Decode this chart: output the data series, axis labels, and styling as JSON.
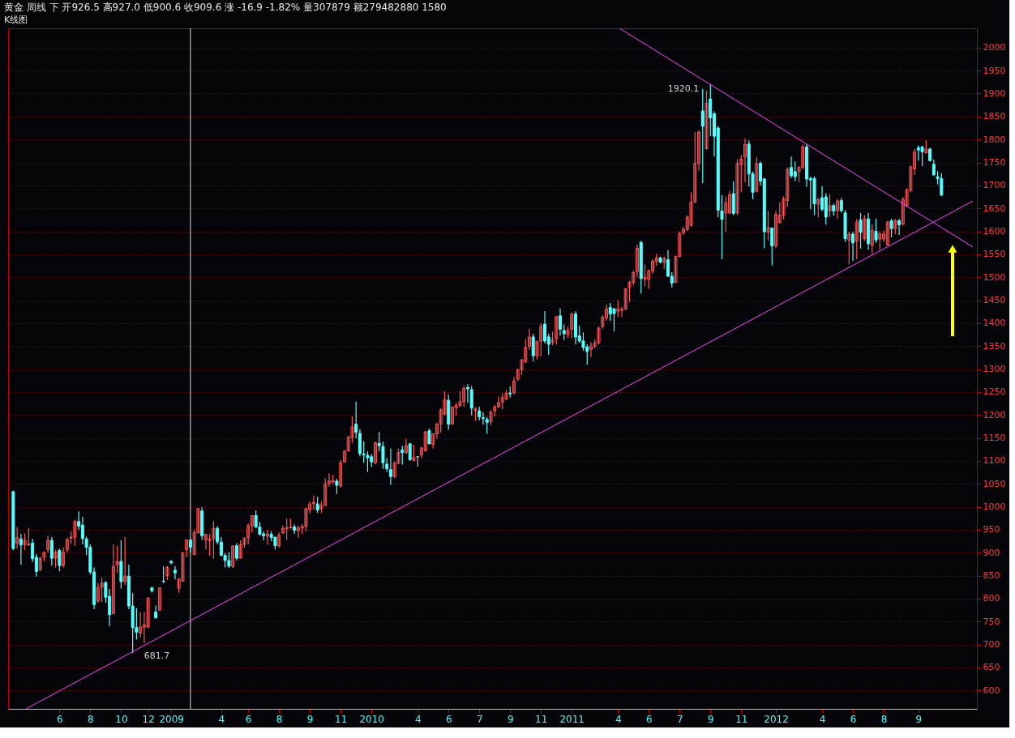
{
  "chart_data": {
    "type": "candlestick",
    "title": "黄金  周线  下  开926.5 高927.0 低900.6 收909.6 涨 -16.9 -1.82% 量307879 额279482880 1580",
    "subtitle": "K线图",
    "x": [
      "2008-03-22",
      "2008-03-29",
      "2008-04-05",
      "2008-04-12",
      "2008-04-19",
      "2008-04-26",
      "2008-05-03",
      "2008-05-10",
      "2008-05-17",
      "2008-05-24",
      "2008-05-31",
      "2008-06-07",
      "2008-06-14",
      "2008-06-21",
      "2008-06-28",
      "2008-07-05",
      "2008-07-12",
      "2008-07-19",
      "2008-07-26",
      "2008-08-02",
      "2008-08-09",
      "2008-08-16",
      "2008-08-23",
      "2008-08-30",
      "2008-09-06",
      "2008-09-13",
      "2008-09-20",
      "2008-09-27",
      "2008-10-04",
      "2008-10-11",
      "2008-10-18",
      "2008-10-25",
      "2008-11-01",
      "2008-11-08",
      "2008-11-15",
      "2008-11-22",
      "2008-11-29",
      "2008-12-06",
      "2008-12-13",
      "2008-12-20",
      "2008-12-27",
      "2009-01-03",
      "2009-01-10",
      "2009-01-17",
      "2009-01-24",
      "2009-01-31",
      "2009-02-07",
      "2009-02-14",
      "2009-02-21",
      "2009-02-28",
      "2009-03-07",
      "2009-03-14",
      "2009-03-21",
      "2009-03-28",
      "2009-04-04",
      "2009-04-11",
      "2009-04-18",
      "2009-04-25",
      "2009-05-02",
      "2009-05-09",
      "2009-05-16",
      "2009-05-23",
      "2009-05-30",
      "2009-06-06",
      "2009-06-13",
      "2009-06-20",
      "2009-06-27",
      "2009-07-04",
      "2009-07-11",
      "2009-07-18",
      "2009-07-25",
      "2009-08-01",
      "2009-08-08",
      "2009-08-15",
      "2009-08-22",
      "2009-08-29",
      "2009-09-05",
      "2009-09-12",
      "2009-09-19",
      "2009-09-26",
      "2009-10-03",
      "2009-10-10",
      "2009-10-17",
      "2009-10-24",
      "2009-10-31",
      "2009-11-07",
      "2009-11-14",
      "2009-11-21",
      "2009-11-28",
      "2009-12-05",
      "2009-12-12",
      "2009-12-19",
      "2009-12-26",
      "2010-01-02",
      "2010-01-09",
      "2010-01-16",
      "2010-01-23",
      "2010-01-30",
      "2010-02-06",
      "2010-02-13",
      "2010-02-20",
      "2010-02-27",
      "2010-03-06",
      "2010-03-13",
      "2010-03-20",
      "2010-03-27",
      "2010-04-03",
      "2010-04-10",
      "2010-04-17",
      "2010-04-24",
      "2010-05-01",
      "2010-05-08",
      "2010-05-15",
      "2010-05-22",
      "2010-05-29",
      "2010-06-05",
      "2010-06-12",
      "2010-06-19",
      "2010-06-26",
      "2010-07-03",
      "2010-07-10",
      "2010-07-17",
      "2010-07-24",
      "2010-07-31",
      "2010-08-07",
      "2010-08-14",
      "2010-08-21",
      "2010-08-28",
      "2010-09-04",
      "2010-09-11",
      "2010-09-18",
      "2010-09-25",
      "2010-10-02",
      "2010-10-09",
      "2010-10-16",
      "2010-10-23",
      "2010-10-30",
      "2010-11-06",
      "2010-11-13",
      "2010-11-20",
      "2010-11-27",
      "2010-12-04",
      "2010-12-11",
      "2010-12-18",
      "2010-12-25",
      "2011-01-01",
      "2011-01-08",
      "2011-01-15",
      "2011-01-22",
      "2011-01-29",
      "2011-02-05",
      "2011-02-12",
      "2011-02-19",
      "2011-02-26",
      "2011-03-05",
      "2011-03-12",
      "2011-03-19",
      "2011-03-26",
      "2011-04-02",
      "2011-04-09",
      "2011-04-16",
      "2011-04-23",
      "2011-04-30",
      "2011-05-07",
      "2011-05-14",
      "2011-05-21",
      "2011-05-28",
      "2011-06-04",
      "2011-06-11",
      "2011-06-18",
      "2011-06-25",
      "2011-07-02",
      "2011-07-09",
      "2011-07-16",
      "2011-07-23",
      "2011-07-30",
      "2011-08-06",
      "2011-08-13",
      "2011-08-20",
      "2011-08-27",
      "2011-09-03",
      "2011-09-10",
      "2011-09-17",
      "2011-09-24",
      "2011-10-01",
      "2011-10-08",
      "2011-10-15",
      "2011-10-22",
      "2011-10-29",
      "2011-11-05",
      "2011-11-12",
      "2011-11-19",
      "2011-11-26",
      "2011-12-03",
      "2011-12-10",
      "2011-12-17",
      "2011-12-24",
      "2011-12-31",
      "2012-01-07",
      "2012-01-14",
      "2012-01-21",
      "2012-01-28",
      "2012-02-04",
      "2012-02-11",
      "2012-02-18",
      "2012-02-25",
      "2012-03-03",
      "2012-03-10",
      "2012-03-17",
      "2012-03-24",
      "2012-03-31",
      "2012-04-07",
      "2012-04-14",
      "2012-04-21",
      "2012-04-28",
      "2012-05-05",
      "2012-05-12",
      "2012-05-19",
      "2012-05-26",
      "2012-06-02",
      "2012-06-09",
      "2012-06-16",
      "2012-06-23",
      "2012-06-30",
      "2012-07-07",
      "2012-07-14",
      "2012-07-21",
      "2012-07-28",
      "2012-08-04",
      "2012-08-11",
      "2012-08-18",
      "2012-08-25",
      "2012-09-01",
      "2012-09-08",
      "2012-09-15",
      "2012-09-22",
      "2012-09-29",
      "2012-10-06",
      "2012-10-13",
      "2012-10-20",
      "2012-10-27",
      "2012-11-03"
    ],
    "ohlc": [
      [
        1033,
        1035,
        906,
        909
      ],
      [
        921,
        956,
        909,
        933
      ],
      [
        930,
        941,
        874,
        917
      ],
      [
        918,
        942,
        906,
        927
      ],
      [
        917,
        954,
        915,
        919
      ],
      [
        921,
        930,
        880,
        887
      ],
      [
        890,
        897,
        848,
        859
      ],
      [
        862,
        891,
        862,
        888
      ],
      [
        890,
        903,
        882,
        900
      ],
      [
        907,
        937,
        900,
        927
      ],
      [
        927,
        934,
        872,
        888
      ],
      [
        888,
        906,
        868,
        901
      ],
      [
        905,
        909,
        860,
        872
      ],
      [
        872,
        911,
        868,
        901
      ],
      [
        907,
        933,
        901,
        928
      ],
      [
        932,
        947,
        919,
        934
      ],
      [
        934,
        971,
        915,
        968
      ],
      [
        968,
        990,
        950,
        958
      ],
      [
        960,
        978,
        918,
        931
      ],
      [
        930,
        935,
        895,
        912
      ],
      [
        912,
        918,
        853,
        858
      ],
      [
        858,
        868,
        777,
        787
      ],
      [
        795,
        834,
        791,
        824
      ],
      [
        825,
        846,
        793,
        834
      ],
      [
        835,
        838,
        791,
        803
      ],
      [
        805,
        821,
        740,
        765
      ],
      [
        767,
        918,
        767,
        870
      ],
      [
        874,
        915,
        856,
        881
      ],
      [
        881,
        927,
        822,
        837
      ],
      [
        837,
        934,
        830,
        849
      ],
      [
        849,
        874,
        777,
        784
      ],
      [
        784,
        812,
        681.7,
        737
      ],
      [
        737,
        779,
        711,
        727
      ],
      [
        725,
        771,
        715,
        738
      ],
      [
        738,
        771,
        703,
        743
      ],
      [
        738,
        803,
        735,
        801
      ],
      [
        824,
        825,
        813,
        817
      ],
      [
        771,
        785,
        758,
        758
      ],
      [
        775,
        824,
        773,
        824
      ],
      [
        838,
        870,
        834,
        837
      ],
      [
        850,
        871,
        841,
        868
      ],
      [
        881,
        884,
        875,
        878
      ],
      [
        862,
        871,
        842,
        856
      ],
      [
        823,
        843,
        813,
        843
      ],
      [
        838,
        901,
        837,
        900
      ],
      [
        906,
        928,
        890,
        928
      ],
      [
        928,
        928,
        901,
        912
      ],
      [
        896,
        950,
        896,
        944
      ],
      [
        943,
        996,
        943,
        996
      ],
      [
        991,
        999,
        928,
        937
      ],
      [
        928,
        940,
        907,
        940
      ],
      [
        926,
        941,
        893,
        930
      ],
      [
        931,
        969,
        887,
        953
      ],
      [
        953,
        958,
        918,
        924
      ],
      [
        923,
        934,
        894,
        894
      ],
      [
        894,
        899,
        868,
        883
      ],
      [
        883,
        901,
        867,
        871
      ],
      [
        870,
        916,
        867,
        915
      ],
      [
        915,
        921,
        883,
        888
      ],
      [
        888,
        927,
        888,
        918
      ],
      [
        918,
        933,
        911,
        932
      ],
      [
        933,
        964,
        918,
        959
      ],
      [
        959,
        981,
        944,
        981
      ],
      [
        981,
        992,
        954,
        956
      ],
      [
        956,
        967,
        938,
        940
      ],
      [
        941,
        946,
        927,
        937
      ],
      [
        936,
        950,
        917,
        941
      ],
      [
        940,
        947,
        925,
        933
      ],
      [
        934,
        934,
        907,
        915
      ],
      [
        915,
        944,
        911,
        938
      ],
      [
        943,
        959,
        941,
        953
      ],
      [
        953,
        974,
        928,
        954
      ],
      [
        954,
        974,
        953,
        956
      ],
      [
        956,
        962,
        941,
        949
      ],
      [
        948,
        959,
        933,
        954
      ],
      [
        954,
        962,
        941,
        957
      ],
      [
        957,
        997,
        946,
        996
      ],
      [
        994,
        1012,
        986,
        1006
      ],
      [
        1007,
        1025,
        994,
        1010
      ],
      [
        1006,
        1022,
        987,
        993
      ],
      [
        996,
        1012,
        987,
        1003
      ],
      [
        1003,
        1062,
        1003,
        1050
      ],
      [
        1051,
        1073,
        1044,
        1056
      ],
      [
        1054,
        1070,
        1050,
        1057
      ],
      [
        1056,
        1061,
        1028,
        1047
      ],
      [
        1045,
        1102,
        1042,
        1096
      ],
      [
        1098,
        1124,
        1096,
        1121
      ],
      [
        1122,
        1154,
        1120,
        1152
      ],
      [
        1151,
        1197,
        1139,
        1174
      ],
      [
        1180,
        1229,
        1149,
        1162
      ],
      [
        1160,
        1169,
        1110,
        1116
      ],
      [
        1115,
        1143,
        1096,
        1113
      ],
      [
        1112,
        1121,
        1076,
        1107
      ],
      [
        1109,
        1115,
        1087,
        1098
      ],
      [
        1096,
        1142,
        1093,
        1139
      ],
      [
        1138,
        1163,
        1121,
        1133
      ],
      [
        1131,
        1142,
        1083,
        1096
      ],
      [
        1093,
        1106,
        1076,
        1083
      ],
      [
        1081,
        1127,
        1048,
        1066
      ],
      [
        1066,
        1099,
        1063,
        1095
      ],
      [
        1095,
        1127,
        1093,
        1118
      ],
      [
        1124,
        1133,
        1092,
        1118
      ],
      [
        1118,
        1148,
        1115,
        1133
      ],
      [
        1137,
        1139,
        1100,
        1103
      ],
      [
        1101,
        1135,
        1101,
        1107
      ],
      [
        1109,
        1109,
        1087,
        1109
      ],
      [
        1113,
        1131,
        1106,
        1128
      ],
      [
        1122,
        1165,
        1120,
        1163
      ],
      [
        1166,
        1171,
        1137,
        1137
      ],
      [
        1136,
        1160,
        1127,
        1159
      ],
      [
        1159,
        1183,
        1148,
        1180
      ],
      [
        1180,
        1215,
        1162,
        1211
      ],
      [
        1202,
        1252,
        1199,
        1233
      ],
      [
        1232,
        1244,
        1168,
        1180
      ],
      [
        1180,
        1219,
        1179,
        1217
      ],
      [
        1215,
        1227,
        1199,
        1221
      ],
      [
        1221,
        1252,
        1218,
        1229
      ],
      [
        1229,
        1263,
        1218,
        1258
      ],
      [
        1260,
        1267,
        1227,
        1257
      ],
      [
        1255,
        1263,
        1199,
        1215
      ],
      [
        1210,
        1217,
        1186,
        1213
      ],
      [
        1209,
        1218,
        1188,
        1196
      ],
      [
        1194,
        1206,
        1179,
        1192
      ],
      [
        1190,
        1196,
        1159,
        1184
      ],
      [
        1186,
        1210,
        1177,
        1206
      ],
      [
        1209,
        1221,
        1197,
        1218
      ],
      [
        1218,
        1240,
        1215,
        1227
      ],
      [
        1228,
        1247,
        1212,
        1238
      ],
      [
        1235,
        1254,
        1233,
        1247
      ],
      [
        1248,
        1262,
        1238,
        1246
      ],
      [
        1249,
        1283,
        1244,
        1274
      ],
      [
        1278,
        1301,
        1274,
        1298
      ],
      [
        1299,
        1322,
        1287,
        1320
      ],
      [
        1316,
        1365,
        1313,
        1347
      ],
      [
        1349,
        1388,
        1342,
        1370
      ],
      [
        1370,
        1377,
        1317,
        1329
      ],
      [
        1329,
        1362,
        1321,
        1360
      ],
      [
        1361,
        1400,
        1327,
        1393
      ],
      [
        1398,
        1426,
        1356,
        1361
      ],
      [
        1370,
        1377,
        1331,
        1354
      ],
      [
        1358,
        1382,
        1352,
        1364
      ],
      [
        1366,
        1416,
        1354,
        1414
      ],
      [
        1416,
        1432,
        1373,
        1387
      ],
      [
        1384,
        1397,
        1363,
        1377
      ],
      [
        1375,
        1393,
        1368,
        1384
      ],
      [
        1386,
        1423,
        1368,
        1420
      ],
      [
        1420,
        1426,
        1354,
        1370
      ],
      [
        1372,
        1394,
        1357,
        1361
      ],
      [
        1361,
        1380,
        1340,
        1347
      ],
      [
        1348,
        1354,
        1310,
        1338
      ],
      [
        1343,
        1359,
        1326,
        1350
      ],
      [
        1350,
        1365,
        1345,
        1357
      ],
      [
        1357,
        1393,
        1354,
        1389
      ],
      [
        1393,
        1418,
        1388,
        1413
      ],
      [
        1411,
        1441,
        1406,
        1431
      ],
      [
        1434,
        1444,
        1405,
        1420
      ],
      [
        1431,
        1433,
        1382,
        1421
      ],
      [
        1426,
        1450,
        1413,
        1431
      ],
      [
        1428,
        1436,
        1413,
        1430
      ],
      [
        1431,
        1476,
        1429,
        1475
      ],
      [
        1478,
        1492,
        1446,
        1489
      ],
      [
        1489,
        1514,
        1482,
        1510
      ],
      [
        1512,
        1571,
        1500,
        1563
      ],
      [
        1576,
        1579,
        1464,
        1497
      ],
      [
        1496,
        1528,
        1480,
        1500
      ],
      [
        1496,
        1517,
        1475,
        1514
      ],
      [
        1514,
        1539,
        1507,
        1535
      ],
      [
        1535,
        1551,
        1524,
        1542
      ],
      [
        1542,
        1545,
        1530,
        1533
      ],
      [
        1532,
        1545,
        1518,
        1541
      ],
      [
        1538,
        1559,
        1502,
        1502
      ],
      [
        1502,
        1511,
        1478,
        1487
      ],
      [
        1489,
        1547,
        1489,
        1545
      ],
      [
        1545,
        1599,
        1544,
        1595
      ],
      [
        1597,
        1610,
        1592,
        1604
      ],
      [
        1604,
        1635,
        1601,
        1631
      ],
      [
        1613,
        1685,
        1610,
        1664
      ],
      [
        1664,
        1816,
        1662,
        1748
      ],
      [
        1748,
        1820,
        1732,
        1816
      ],
      [
        1862,
        1910,
        1705,
        1829
      ],
      [
        1780,
        1906,
        1778,
        1879
      ],
      [
        1888,
        1920.1,
        1807,
        1847
      ],
      [
        1856,
        1861,
        1763,
        1807
      ],
      [
        1825,
        1829,
        1631,
        1646
      ],
      [
        1644,
        1679,
        1539,
        1626
      ],
      [
        1640,
        1676,
        1599,
        1662
      ],
      [
        1640,
        1688,
        1637,
        1680
      ],
      [
        1682,
        1709,
        1635,
        1639
      ],
      [
        1640,
        1757,
        1635,
        1748
      ],
      [
        1745,
        1766,
        1685,
        1757
      ],
      [
        1762,
        1802,
        1707,
        1789
      ],
      [
        1790,
        1798,
        1698,
        1725
      ],
      [
        1725,
        1730,
        1670,
        1685
      ],
      [
        1687,
        1762,
        1685,
        1748
      ],
      [
        1748,
        1752,
        1700,
        1709
      ],
      [
        1714,
        1716,
        1563,
        1599
      ],
      [
        1598,
        1644,
        1580,
        1608
      ],
      [
        1607,
        1608,
        1526,
        1568
      ],
      [
        1568,
        1644,
        1563,
        1637
      ],
      [
        1619,
        1663,
        1617,
        1635
      ],
      [
        1635,
        1676,
        1626,
        1671
      ],
      [
        1667,
        1739,
        1653,
        1735
      ],
      [
        1739,
        1763,
        1716,
        1721
      ],
      [
        1730,
        1752,
        1709,
        1719
      ],
      [
        1730,
        1742,
        1707,
        1739
      ],
      [
        1739,
        1789,
        1736,
        1784
      ],
      [
        1784,
        1790,
        1697,
        1714
      ],
      [
        1715,
        1719,
        1648,
        1712
      ],
      [
        1715,
        1719,
        1635,
        1660
      ],
      [
        1659,
        1673,
        1630,
        1669
      ],
      [
        1673,
        1698,
        1644,
        1648
      ],
      [
        1675,
        1683,
        1615,
        1631
      ],
      [
        1645,
        1681,
        1631,
        1656
      ],
      [
        1656,
        1660,
        1634,
        1644
      ],
      [
        1645,
        1670,
        1627,
        1666
      ],
      [
        1667,
        1673,
        1641,
        1645
      ],
      [
        1640,
        1646,
        1577,
        1584
      ],
      [
        1581,
        1599,
        1528,
        1594
      ],
      [
        1594,
        1599,
        1535,
        1575
      ],
      [
        1579,
        1627,
        1539,
        1620
      ],
      [
        1625,
        1640,
        1562,
        1598
      ],
      [
        1584,
        1635,
        1579,
        1627
      ],
      [
        1627,
        1640,
        1560,
        1573
      ],
      [
        1570,
        1615,
        1550,
        1602
      ],
      [
        1600,
        1627,
        1575,
        1581
      ],
      [
        1583,
        1600,
        1560,
        1594
      ],
      [
        1583,
        1602,
        1577,
        1594
      ],
      [
        1570,
        1623,
        1569,
        1620
      ],
      [
        1623,
        1627,
        1587,
        1606
      ],
      [
        1606,
        1627,
        1594,
        1623
      ],
      [
        1623,
        1627,
        1592,
        1614
      ],
      [
        1616,
        1675,
        1612,
        1669
      ],
      [
        1656,
        1694,
        1652,
        1690
      ],
      [
        1690,
        1744,
        1685,
        1740
      ],
      [
        1736,
        1779,
        1723,
        1773
      ],
      [
        1782,
        1787,
        1754,
        1777
      ],
      [
        1784,
        1786,
        1742,
        1773
      ],
      [
        1771,
        1798,
        1769,
        1779
      ],
      [
        1779,
        1782,
        1752,
        1754
      ],
      [
        1746,
        1756,
        1721,
        1723
      ],
      [
        1719,
        1731,
        1702,
        1715
      ],
      [
        1715,
        1727,
        1677,
        1679
      ]
    ],
    "colors": [
      "#54ffff",
      "#ff5555",
      "#54ffff",
      "#ff5555",
      "#ff5555",
      "#54ffff",
      "#54ffff",
      "#ff5555",
      "#ff5555",
      "#ff5555",
      "#54ffff",
      "#ff5555",
      "#54ffff",
      "#ff5555",
      "#ff5555",
      "#ff5555",
      "#ff5555",
      "#54ffff",
      "#54ffff",
      "#54ffff",
      "#54ffff",
      "#54ffff",
      "#ff5555",
      "#ff5555",
      "#54ffff",
      "#54ffff",
      "#ff5555",
      "#ff5555",
      "#54ffff",
      "#ff5555",
      "#54ffff",
      "#54ffff",
      "#54ffff",
      "#ff5555",
      "#ff5555",
      "#ff5555",
      "#54ffff",
      "#54ffff",
      "#ff5555",
      "#54ffff",
      "#ff5555",
      "#54ffff",
      "#54ffff",
      "#ff5555",
      "#ff5555",
      "#ff5555",
      "#54ffff",
      "#ff5555",
      "#ff5555",
      "#54ffff",
      "#ff5555",
      "#ff5555",
      "#ff5555",
      "#54ffff",
      "#54ffff",
      "#54ffff",
      "#54ffff",
      "#ff5555",
      "#54ffff",
      "#ff5555",
      "#ff5555",
      "#ff5555",
      "#ff5555",
      "#54ffff",
      "#54ffff",
      "#54ffff",
      "#ff5555",
      "#54ffff",
      "#54ffff",
      "#ff5555",
      "#ff5555",
      "#ff5555",
      "#ff5555",
      "#54ffff",
      "#ff5555",
      "#ff5555",
      "#ff5555",
      "#ff5555",
      "#ff5555",
      "#54ffff",
      "#ff5555",
      "#ff5555",
      "#ff5555",
      "#ff5555",
      "#54ffff",
      "#ff5555",
      "#ff5555",
      "#ff5555",
      "#ff5555",
      "#54ffff",
      "#54ffff",
      "#54ffff",
      "#54ffff",
      "#54ffff",
      "#ff5555",
      "#54ffff",
      "#54ffff",
      "#54ffff",
      "#54ffff",
      "#ff5555",
      "#ff5555",
      "#54ffff",
      "#ff5555",
      "#54ffff",
      "#ff5555",
      "#c0c0c0",
      "#ff5555",
      "#ff5555",
      "#54ffff",
      "#ff5555",
      "#ff5555",
      "#ff5555",
      "#ff5555",
      "#54ffff",
      "#ff5555",
      "#ff5555",
      "#ff5555",
      "#ff5555",
      "#54ffff",
      "#54ffff",
      "#ff5555",
      "#54ffff",
      "#54ffff",
      "#54ffff",
      "#ff5555",
      "#ff5555",
      "#ff5555",
      "#ff5555",
      "#ff5555",
      "#54ffff",
      "#ff5555",
      "#ff5555",
      "#ff5555",
      "#ff5555",
      "#ff5555",
      "#54ffff",
      "#ff5555",
      "#ff5555",
      "#54ffff",
      "#54ffff",
      "#ff5555",
      "#ff5555",
      "#54ffff",
      "#54ffff",
      "#ff5555",
      "#ff5555",
      "#54ffff",
      "#54ffff",
      "#54ffff",
      "#54ffff",
      "#ff5555",
      "#ff5555",
      "#ff5555",
      "#ff5555",
      "#ff5555",
      "#54ffff",
      "#54ffff",
      "#ff5555",
      "#ff5555",
      "#ff5555",
      "#ff5555",
      "#ff5555",
      "#ff5555",
      "#54ffff",
      "#ff5555",
      "#ff5555",
      "#ff5555",
      "#ff5555",
      "#54ffff",
      "#ff5555",
      "#54ffff",
      "#54ffff",
      "#ff5555",
      "#ff5555",
      "#ff5555",
      "#ff5555",
      "#ff5555",
      "#ff5555",
      "#ff5555",
      "#54ffff",
      "#ff5555",
      "#54ffff",
      "#54ffff",
      "#54ffff",
      "#54ffff",
      "#ff5555",
      "#ff5555",
      "#54ffff",
      "#ff5555",
      "#ff5555",
      "#ff5555",
      "#54ffff",
      "#54ffff",
      "#ff5555",
      "#54ffff",
      "#54ffff",
      "#ff5555",
      "#54ffff",
      "#ff5555",
      "#ff5555",
      "#ff5555",
      "#ff5555",
      "#54ffff",
      "#54ffff",
      "#ff5555",
      "#ff5555",
      "#54ffff",
      "#54ffff",
      "#54ffff",
      "#ff5555",
      "#54ffff",
      "#54ffff",
      "#ff5555",
      "#54ffff",
      "#ff5555",
      "#54ffff",
      "#54ffff",
      "#ff5555",
      "#54ffff",
      "#ff5555",
      "#54ffff",
      "#ff5555",
      "#54ffff",
      "#ff5555",
      "#54ffff",
      "#ff5555",
      "#ff5555",
      "#ff5555",
      "#54ffff",
      "#ff5555",
      "#54ffff",
      "#ff5555",
      "#ff5555",
      "#ff5555",
      "#ff5555",
      "#54ffff",
      "#54ffff",
      "#ff5555",
      "#54ffff",
      "#54ffff",
      "#54ffff",
      "#54ffff"
    ],
    "series": [
      {
        "type": "line",
        "color": "#ff40ff",
        "x": [
          "2008-04-14",
          "2012-12-30"
        ],
        "values": [
          560,
          1666
        ]
      },
      {
        "type": "line",
        "color": "#ff40ff",
        "x": [
          "2011-03-29",
          "2012-12-30"
        ],
        "values": [
          2042,
          1566
        ]
      }
    ],
    "xlim": [
      "2008-03-20",
      "2012-12-30"
    ],
    "xticks": [
      {
        "value": "2008-06-14",
        "label": "6"
      },
      {
        "value": "2008-08-09",
        "label": "8"
      },
      {
        "value": "2008-10-04",
        "label": "10"
      },
      {
        "value": "2008-11-22",
        "label": "12"
      },
      {
        "value": "2009-01-03",
        "label": "2009"
      },
      {
        "value": "2009-04-04",
        "label": "4"
      },
      {
        "value": "2009-05-23",
        "label": "6"
      },
      {
        "value": "2009-07-18",
        "label": "8"
      },
      {
        "value": "2009-09-12",
        "label": "9"
      },
      {
        "value": "2009-11-07",
        "label": "11"
      },
      {
        "value": "2010-01-02",
        "label": "2010"
      },
      {
        "value": "2010-03-27",
        "label": "4"
      },
      {
        "value": "2010-05-22",
        "label": "6"
      },
      {
        "value": "2010-07-17",
        "label": "7"
      },
      {
        "value": "2010-09-11",
        "label": "9"
      },
      {
        "value": "2010-11-06",
        "label": "11"
      },
      {
        "value": "2011-01-01",
        "label": "2011"
      },
      {
        "value": "2011-03-26",
        "label": "4"
      },
      {
        "value": "2011-05-21",
        "label": "6"
      },
      {
        "value": "2011-07-16",
        "label": "7"
      },
      {
        "value": "2011-09-10",
        "label": "9"
      },
      {
        "value": "2011-11-05",
        "label": "11"
      },
      {
        "value": "2012-01-07",
        "label": "2012"
      },
      {
        "value": "2012-03-31",
        "label": "4"
      },
      {
        "value": "2012-05-26",
        "label": "6"
      },
      {
        "value": "2012-07-21",
        "label": "8"
      },
      {
        "value": "2012-09-22",
        "label": "9"
      }
    ],
    "ylim": [
      560,
      2042
    ],
    "yticks": [
      600,
      650,
      700,
      750,
      800,
      850,
      900,
      950,
      1000,
      1050,
      1100,
      1150,
      1200,
      1250,
      1300,
      1350,
      1400,
      1450,
      1500,
      1550,
      1600,
      1650,
      1700,
      1750,
      1800,
      1850,
      1900,
      1950,
      2000
    ],
    "grid": "y",
    "ref_lines": [
      {
        "axis": "x",
        "value": "2009-02-07",
        "color": "#e0e0e0"
      }
    ],
    "annotations": [
      {
        "text": "1920.1",
        "x": "2011-09-10",
        "y": 1920.1
      },
      {
        "text": "681.7",
        "x": "2008-10-25",
        "y": 681.7
      }
    ]
  }
}
